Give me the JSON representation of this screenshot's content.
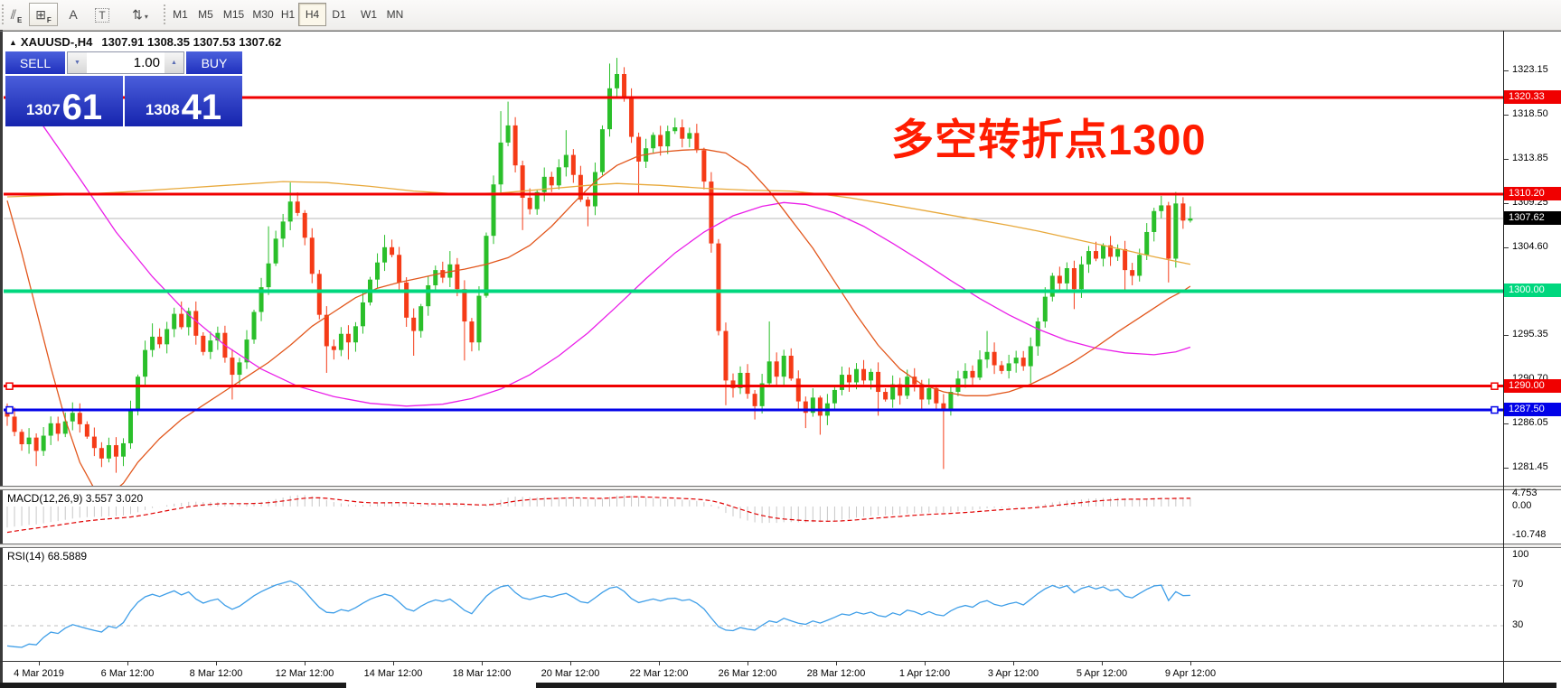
{
  "toolbar": {
    "tools": [
      {
        "name": "draw-hatch",
        "glyph": "⫽",
        "sub": "E"
      },
      {
        "name": "grid-fibo",
        "glyph": "⊞",
        "sub": "F",
        "raised": true
      },
      {
        "name": "text-label",
        "glyph": "A"
      },
      {
        "name": "textbox",
        "glyph": "T",
        "dotted": true
      },
      {
        "name": "sort-arrows",
        "glyph": "⇅",
        "caret": "▾"
      }
    ],
    "timeframes": [
      "M1",
      "M5",
      "M15",
      "M30",
      "H1",
      "H4",
      "D1",
      "W1",
      "MN"
    ],
    "active_timeframe": "H4"
  },
  "chart_title": {
    "collapse_icon": "▲",
    "symbol": "XAUUSD-,H4",
    "ohlc": "1307.91 1308.35 1307.53 1307.62"
  },
  "quote_panel": {
    "sell_label": "SELL",
    "buy_label": "BUY",
    "volume": "1.00",
    "bid_small": "1307",
    "bid_big": "61",
    "ask_small": "1308",
    "ask_big": "41"
  },
  "annotation": {
    "text": "多空转折点1300",
    "color": "#ff1c00"
  },
  "hlines": [
    {
      "label": "1320.33",
      "price": 1320.33,
      "color": "#f00000",
      "thickness": 3,
      "handles": false
    },
    {
      "label": "1310.20",
      "price": 1310.2,
      "color": "#f00000",
      "thickness": 3,
      "handles": false
    },
    {
      "label": "1300.00",
      "price": 1300.0,
      "color": "#00d77e",
      "thickness": 4,
      "handles": false
    },
    {
      "label": "1290.00",
      "price": 1290.0,
      "color": "#f00000",
      "thickness": 3,
      "handles": true
    },
    {
      "label": "1287.50",
      "price": 1287.5,
      "color": "#0202e8",
      "thickness": 3,
      "handles": true
    }
  ],
  "current_price": {
    "label": "1307.62",
    "price": 1307.62,
    "line_color": "#b8b8b8",
    "badge_bg": "#000000"
  },
  "price_axis": {
    "ticks": [
      {
        "label": "1323.15",
        "price": 1323.15
      },
      {
        "label": "1318.50",
        "price": 1318.5
      },
      {
        "label": "1313.85",
        "price": 1313.85
      },
      {
        "label": "1309.25",
        "price": 1309.25
      },
      {
        "label": "1304.60",
        "price": 1304.6
      },
      {
        "label": "1295.35",
        "price": 1295.35
      },
      {
        "label": "1290.70",
        "price": 1290.7
      },
      {
        "label": "1286.05",
        "price": 1286.05
      },
      {
        "label": "1281.45",
        "price": 1281.45
      }
    ]
  },
  "indicators": {
    "macd": {
      "name": "MACD(12,26,9)",
      "values": "3.557 3.020",
      "fast": 12,
      "slow": 26,
      "signal": 9,
      "axis": [
        {
          "label": "4.753",
          "value": 4.753
        },
        {
          "label": "0.00",
          "value": 0
        },
        {
          "label": "-10.748",
          "value": -10.748
        }
      ],
      "histogram_color": "#c8c8c8",
      "signal_color": "#e00000"
    },
    "rsi": {
      "name": "RSI(14)",
      "value": "68.5889",
      "period": 14,
      "axis": [
        {
          "label": "100",
          "value": 100
        },
        {
          "label": "70",
          "value": 70
        },
        {
          "label": "30",
          "value": 30
        }
      ],
      "levels": [
        70,
        30
      ],
      "line_color": "#3e9ee8",
      "level_color": "#bfbfbf"
    }
  },
  "time_axis": {
    "labels": [
      "4 Mar 2019",
      "6 Mar 12:00",
      "8 Mar 12:00",
      "12 Mar 12:00",
      "14 Mar 12:00",
      "18 Mar 12:00",
      "20 Mar 12:00",
      "22 Mar 12:00",
      "26 Mar 12:00",
      "28 Mar 12:00",
      "1 Apr 12:00",
      "3 Apr 12:00",
      "5 Apr 12:00",
      "9 Apr 12:00"
    ]
  },
  "chart_data": {
    "type": "candlestick",
    "symbol": "XAUUSD",
    "timeframe": "H4",
    "title": "XAUUSD-,H4",
    "up_color": "#2abf2a",
    "down_color": "#f53b17",
    "price_range": [
      1279.3,
      1327.4
    ],
    "first_open": 1287.6,
    "closes": [
      1286.8,
      1285.2,
      1283.9,
      1284.6,
      1283.2,
      1284.8,
      1286.1,
      1285.0,
      1286.3,
      1287.2,
      1286.0,
      1284.7,
      1283.5,
      1282.4,
      1283.8,
      1282.6,
      1284.0,
      1287.5,
      1291.0,
      1293.8,
      1295.2,
      1294.4,
      1296.0,
      1297.6,
      1296.2,
      1297.9,
      1295.3,
      1293.6,
      1294.8,
      1295.6,
      1293.0,
      1291.2,
      1292.5,
      1294.9,
      1297.8,
      1300.4,
      1302.9,
      1305.5,
      1307.3,
      1309.4,
      1308.2,
      1305.6,
      1301.8,
      1297.5,
      1294.2,
      1293.8,
      1295.5,
      1294.6,
      1296.3,
      1298.8,
      1301.2,
      1303.0,
      1304.6,
      1303.8,
      1300.9,
      1297.2,
      1295.8,
      1298.4,
      1300.6,
      1302.2,
      1301.4,
      1302.8,
      1300.2,
      1296.8,
      1294.6,
      1299.5,
      1305.8,
      1311.2,
      1315.6,
      1317.4,
      1313.2,
      1309.8,
      1308.6,
      1310.4,
      1312.0,
      1311.1,
      1313.0,
      1314.3,
      1312.2,
      1309.6,
      1308.9,
      1312.5,
      1317.0,
      1321.3,
      1322.8,
      1320.4,
      1316.2,
      1313.6,
      1315.0,
      1316.4,
      1315.2,
      1316.8,
      1317.2,
      1316.0,
      1316.6,
      1314.8,
      1311.5,
      1305.0,
      1295.8,
      1290.6,
      1289.8,
      1291.4,
      1289.2,
      1287.9,
      1290.3,
      1292.6,
      1291.0,
      1293.2,
      1290.8,
      1288.4,
      1287.2,
      1288.8,
      1286.9,
      1288.2,
      1289.6,
      1291.2,
      1290.4,
      1291.8,
      1290.6,
      1291.5,
      1289.4,
      1288.6,
      1290.2,
      1289.0,
      1291.0,
      1290.2,
      1288.6,
      1289.8,
      1288.2,
      1287.6,
      1289.4,
      1290.8,
      1291.6,
      1290.9,
      1292.8,
      1293.6,
      1292.2,
      1291.6,
      1292.4,
      1293.0,
      1292.1,
      1294.2,
      1296.8,
      1299.4,
      1301.6,
      1300.8,
      1302.4,
      1300.2,
      1302.8,
      1304.2,
      1303.4,
      1304.8,
      1303.6,
      1304.4,
      1302.2,
      1301.6,
      1303.8,
      1306.2,
      1308.4,
      1309.0,
      1303.4,
      1309.2,
      1307.4,
      1307.62
    ],
    "extremes": {
      "4": {
        "low": 1281.6
      },
      "9": {
        "high": 1288.3
      },
      "13": {
        "low": 1281.5
      },
      "15": {
        "low": 1280.9
      },
      "20": {
        "high": 1296.6
      },
      "24": {
        "high": 1298.9
      },
      "31": {
        "low": 1288.6
      },
      "36": {
        "high": 1306.8
      },
      "39": {
        "high": 1311.4
      },
      "44": {
        "low": 1291.4
      },
      "47": {
        "low": 1292.8
      },
      "52": {
        "high": 1305.9
      },
      "56": {
        "low": 1293.2
      },
      "61": {
        "high": 1304.2
      },
      "63": {
        "low": 1292.7
      },
      "68": {
        "high": 1318.9
      },
      "69": {
        "high": 1319.9
      },
      "71": {
        "low": 1306.4
      },
      "77": {
        "high": 1316.9
      },
      "80": {
        "low": 1306.8
      },
      "83": {
        "high": 1323.9
      },
      "84": {
        "high": 1324.5
      },
      "87": {
        "low": 1310.3
      },
      "92": {
        "high": 1318.2
      },
      "99": {
        "low": 1288.0
      },
      "103": {
        "low": 1286.5
      },
      "105": {
        "high": 1296.8
      },
      "110": {
        "low": 1285.6
      },
      "112": {
        "low": 1284.9
      },
      "120": {
        "low": 1286.9
      },
      "129": {
        "low": 1281.3
      },
      "135": {
        "high": 1295.8
      },
      "141": {
        "low": 1290.3
      },
      "147": {
        "low": 1298.1
      },
      "154": {
        "low": 1299.8
      },
      "160": {
        "low": 1300.9
      },
      "161": {
        "high": 1310.4
      },
      "163": {
        "high": 1308.9
      }
    },
    "prehistory": [
      1340,
      1336,
      1332,
      1328,
      1324,
      1320,
      1316,
      1312,
      1308,
      1304,
      1300,
      1297,
      1294,
      1291,
      1289,
      1288,
      1287,
      1286,
      1286,
      1286,
      1287,
      1287,
      1286,
      1286,
      1287,
      1287,
      1286,
      1286,
      1287,
      1287
    ],
    "moving_averages": [
      {
        "name": "ma-slow-goldenrod",
        "color": "#e8a93c",
        "points": [
          [
            0,
            1309.9
          ],
          [
            8,
            1310.1
          ],
          [
            16,
            1310.4
          ],
          [
            24,
            1310.8
          ],
          [
            32,
            1311.2
          ],
          [
            38,
            1311.5
          ],
          [
            44,
            1311.4
          ],
          [
            50,
            1311.0
          ],
          [
            56,
            1310.5
          ],
          [
            62,
            1310.2
          ],
          [
            68,
            1310.3
          ],
          [
            74,
            1310.7
          ],
          [
            80,
            1311.1
          ],
          [
            84,
            1311.3
          ],
          [
            90,
            1311.1
          ],
          [
            96,
            1310.8
          ],
          [
            102,
            1310.6
          ],
          [
            108,
            1310.5
          ],
          [
            112,
            1310.2
          ],
          [
            116,
            1309.8
          ],
          [
            120,
            1309.3
          ],
          [
            126,
            1308.5
          ],
          [
            132,
            1307.7
          ],
          [
            138,
            1306.9
          ],
          [
            142,
            1306.3
          ],
          [
            148,
            1305.3
          ],
          [
            154,
            1304.3
          ],
          [
            158,
            1303.6
          ],
          [
            163,
            1302.8
          ]
        ]
      },
      {
        "name": "ma-mid-magenta",
        "color": "#ea1ee8",
        "points": [
          [
            0,
            1322.0
          ],
          [
            5,
            1317.3
          ],
          [
            10,
            1311.8
          ],
          [
            15,
            1306.2
          ],
          [
            20,
            1301.5
          ],
          [
            25,
            1297.5
          ],
          [
            30,
            1294.3
          ],
          [
            35,
            1291.8
          ],
          [
            40,
            1290.0
          ],
          [
            45,
            1288.9
          ],
          [
            50,
            1288.2
          ],
          [
            55,
            1287.9
          ],
          [
            60,
            1288.1
          ],
          [
            64,
            1288.7
          ],
          [
            68,
            1289.7
          ],
          [
            72,
            1291.2
          ],
          [
            76,
            1293.2
          ],
          [
            80,
            1295.6
          ],
          [
            84,
            1298.4
          ],
          [
            88,
            1301.3
          ],
          [
            92,
            1304.0
          ],
          [
            96,
            1306.2
          ],
          [
            100,
            1307.9
          ],
          [
            104,
            1308.9
          ],
          [
            107,
            1309.3
          ],
          [
            110,
            1309.1
          ],
          [
            114,
            1308.2
          ],
          [
            118,
            1306.8
          ],
          [
            122,
            1305.0
          ],
          [
            126,
            1303.1
          ],
          [
            130,
            1301.1
          ],
          [
            134,
            1299.2
          ],
          [
            138,
            1297.5
          ],
          [
            142,
            1296.0
          ],
          [
            146,
            1294.8
          ],
          [
            150,
            1294.0
          ],
          [
            154,
            1293.5
          ],
          [
            158,
            1293.3
          ],
          [
            161,
            1293.6
          ],
          [
            163,
            1294.1
          ]
        ]
      },
      {
        "name": "ma-fast-orangered",
        "color": "#e2571d",
        "points": [
          [
            0,
            1309.5
          ],
          [
            2,
            1304.0
          ],
          [
            4,
            1298.0
          ],
          [
            6,
            1292.0
          ],
          [
            8,
            1286.5
          ],
          [
            10,
            1282.0
          ],
          [
            12,
            1279.2
          ],
          [
            14,
            1278.5
          ],
          [
            16,
            1279.8
          ],
          [
            18,
            1282.0
          ],
          [
            21,
            1284.5
          ],
          [
            24,
            1286.5
          ],
          [
            27,
            1288.0
          ],
          [
            30,
            1289.5
          ],
          [
            33,
            1291.0
          ],
          [
            36,
            1292.5
          ],
          [
            39,
            1294.3
          ],
          [
            42,
            1296.3
          ],
          [
            45,
            1297.8
          ],
          [
            48,
            1299.3
          ],
          [
            51,
            1300.3
          ],
          [
            54,
            1300.9
          ],
          [
            57,
            1301.4
          ],
          [
            60,
            1301.9
          ],
          [
            63,
            1302.3
          ],
          [
            66,
            1302.8
          ],
          [
            69,
            1303.5
          ],
          [
            72,
            1304.8
          ],
          [
            75,
            1306.8
          ],
          [
            78,
            1309.2
          ],
          [
            81,
            1311.5
          ],
          [
            84,
            1313.2
          ],
          [
            87,
            1314.2
          ],
          [
            90,
            1314.6
          ],
          [
            93,
            1314.8
          ],
          [
            96,
            1314.9
          ],
          [
            99,
            1314.5
          ],
          [
            102,
            1313.0
          ],
          [
            105,
            1310.5
          ],
          [
            108,
            1307.5
          ],
          [
            111,
            1304.5
          ],
          [
            114,
            1301.0
          ],
          [
            117,
            1297.5
          ],
          [
            120,
            1294.3
          ],
          [
            123,
            1291.8
          ],
          [
            126,
            1290.2
          ],
          [
            129,
            1289.4
          ],
          [
            132,
            1289.0
          ],
          [
            135,
            1289.0
          ],
          [
            138,
            1289.4
          ],
          [
            141,
            1290.2
          ],
          [
            144,
            1291.3
          ],
          [
            147,
            1292.6
          ],
          [
            150,
            1294.1
          ],
          [
            153,
            1295.7
          ],
          [
            156,
            1297.2
          ],
          [
            158,
            1298.2
          ],
          [
            160,
            1299.2
          ],
          [
            162,
            1300.0
          ],
          [
            163,
            1300.5
          ]
        ]
      }
    ]
  }
}
